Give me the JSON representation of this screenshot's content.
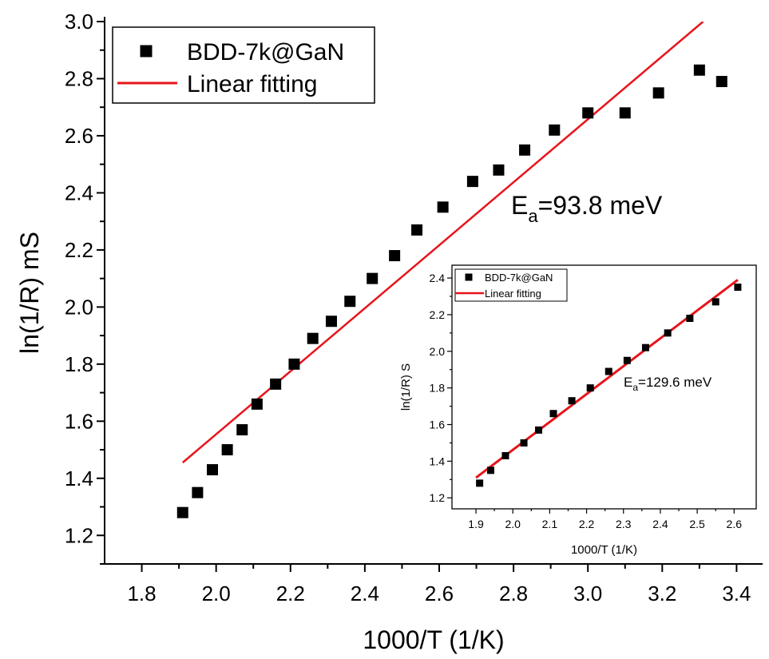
{
  "chart_data": [
    {
      "type": "scatter",
      "xlabel": "1000/T (1/K)",
      "ylabel": "ln(1/R) mS",
      "xlim": [
        1.7,
        3.47
      ],
      "ylim": [
        1.1,
        3.0
      ],
      "xticks": [
        1.8,
        2.0,
        2.2,
        2.4,
        2.6,
        2.8,
        3.0,
        3.2,
        3.4
      ],
      "xtick_labels": [
        "1.8",
        "2.0",
        "2.2",
        "2.4",
        "2.6",
        "2.8",
        "3.0",
        "3.2",
        "3.4"
      ],
      "yticks": [
        1.2,
        1.4,
        1.6,
        1.8,
        2.0,
        2.2,
        2.4,
        2.6,
        2.8,
        3.0
      ],
      "ytick_labels": [
        "1.2",
        "1.4",
        "1.6",
        "1.8",
        "2.0",
        "2.2",
        "2.4",
        "2.6",
        "2.8",
        "3.0"
      ],
      "legend_position": "top-left",
      "series": [
        {
          "name": "BDD-7k@GaN",
          "kind": "scatter",
          "marker": "square",
          "color": "#000000",
          "x": [
            1.91,
            1.95,
            1.99,
            2.03,
            2.07,
            2.11,
            2.16,
            2.21,
            2.26,
            2.31,
            2.36,
            2.42,
            2.48,
            2.54,
            2.61,
            2.69,
            2.76,
            2.83,
            2.91,
            3.0,
            3.1,
            3.19,
            3.3,
            3.36
          ],
          "y": [
            1.28,
            1.35,
            1.43,
            1.5,
            1.57,
            1.66,
            1.73,
            1.8,
            1.89,
            1.95,
            2.02,
            2.1,
            2.18,
            2.27,
            2.35,
            2.44,
            2.48,
            2.55,
            2.62,
            2.68,
            2.68,
            2.75,
            2.83,
            2.79
          ]
        },
        {
          "name": "Linear fitting",
          "kind": "line",
          "color": "#e8141b",
          "x": [
            1.91,
            3.31
          ],
          "y": [
            1.455,
            3.0
          ]
        }
      ],
      "annotation": {
        "main": "E",
        "sub": "a",
        "rest": "=93.8 meV"
      }
    },
    {
      "type": "scatter",
      "xlabel": "1000/T (1/K)",
      "ylabel": "ln(1/R) S",
      "xlim": [
        1.835,
        2.66
      ],
      "ylim": [
        1.14,
        2.47
      ],
      "xticks": [
        1.9,
        2.0,
        2.1,
        2.2,
        2.3,
        2.4,
        2.5,
        2.6
      ],
      "xtick_labels": [
        "1.9",
        "2.0",
        "2.1",
        "2.2",
        "2.3",
        "2.4",
        "2.5",
        "2.6"
      ],
      "yticks": [
        1.2,
        1.4,
        1.6,
        1.8,
        2.0,
        2.2,
        2.4
      ],
      "ytick_labels": [
        "1.2",
        "1.4",
        "1.6",
        "1.8",
        "2.0",
        "2.2",
        "2.4"
      ],
      "legend_position": "top-left",
      "series": [
        {
          "name": "BDD-7k@GaN",
          "kind": "scatter",
          "marker": "square",
          "color": "#000000",
          "x": [
            1.91,
            1.94,
            1.98,
            2.03,
            2.07,
            2.11,
            2.16,
            2.21,
            2.26,
            2.31,
            2.36,
            2.42,
            2.48,
            2.55,
            2.61
          ],
          "y": [
            1.28,
            1.35,
            1.43,
            1.5,
            1.57,
            1.66,
            1.73,
            1.8,
            1.89,
            1.95,
            2.02,
            2.1,
            2.18,
            2.27,
            2.35
          ]
        },
        {
          "name": "Linear fitting",
          "kind": "line",
          "color": "#e8141b",
          "x": [
            1.9,
            2.61
          ],
          "y": [
            1.31,
            2.39
          ]
        }
      ],
      "annotation": {
        "main": "E",
        "sub": "a",
        "rest": "=129.6 meV"
      }
    }
  ]
}
